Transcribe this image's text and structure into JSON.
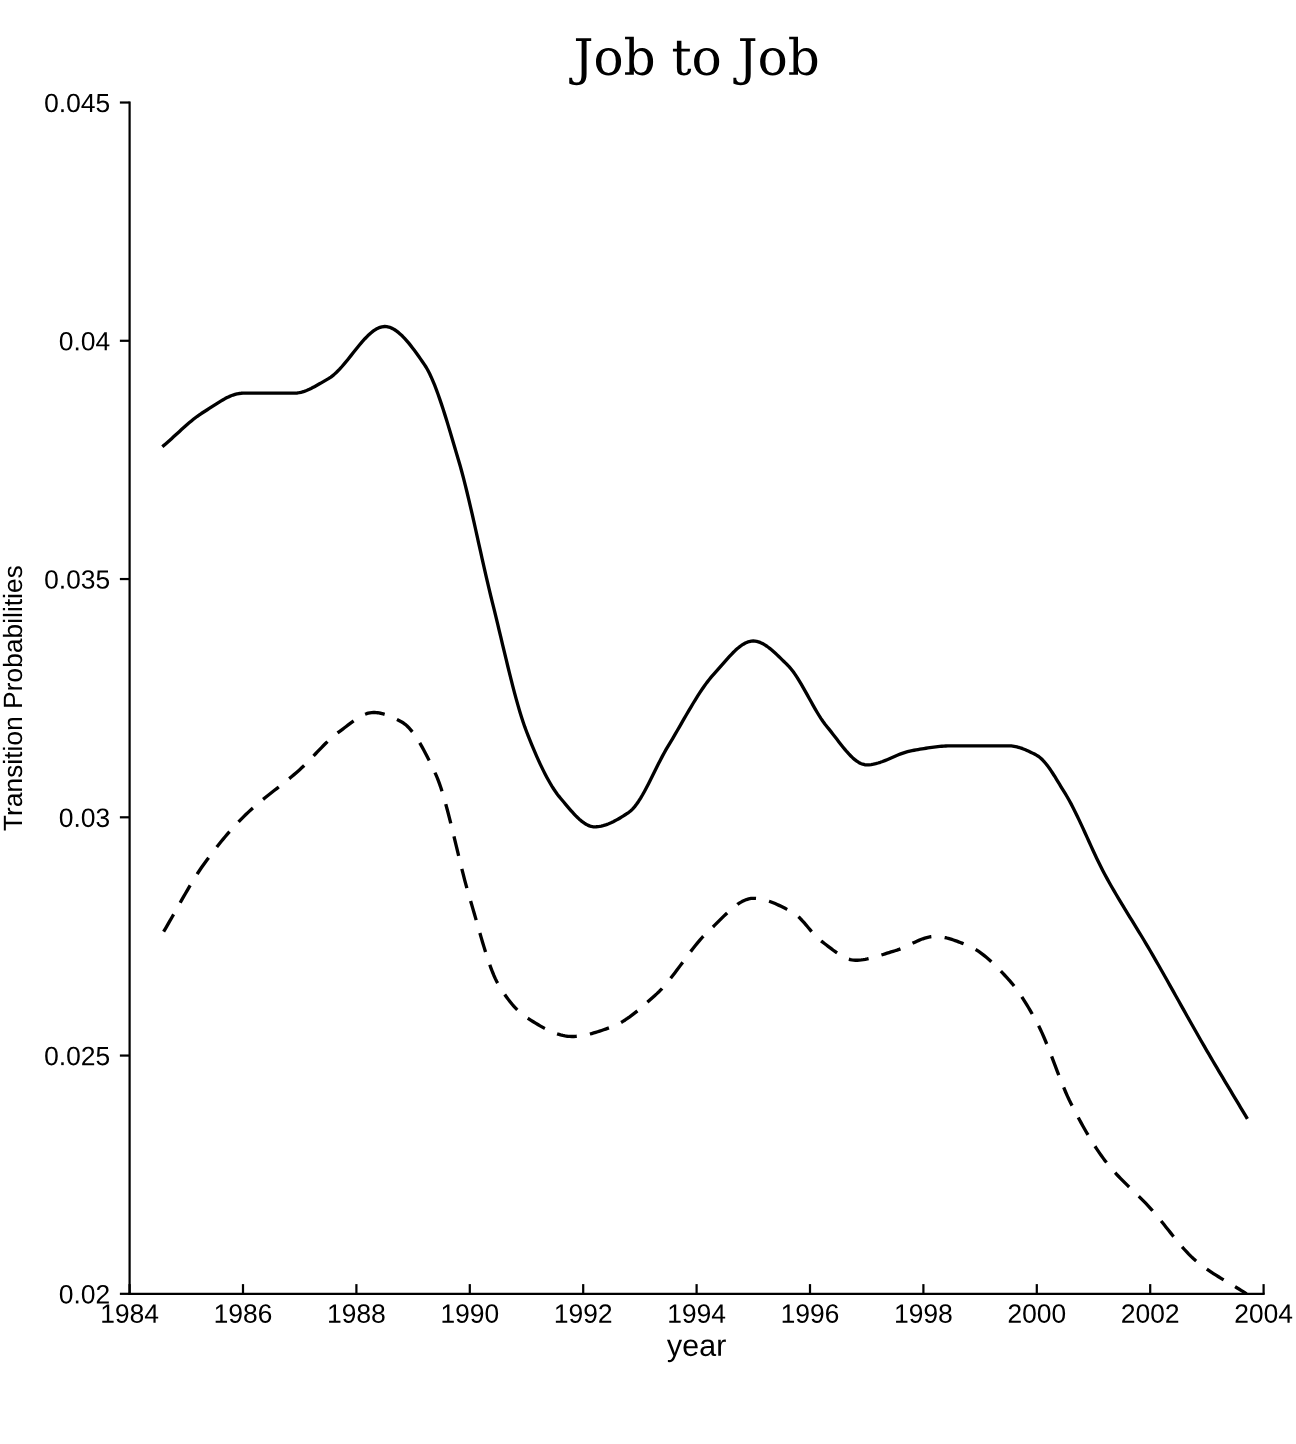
{
  "chart_data": {
    "type": "line",
    "title": "Job to Job",
    "xlabel": "year",
    "ylabel": "Transition Probabilities",
    "xlim": [
      1984,
      2004
    ],
    "ylim": [
      0.02,
      0.045
    ],
    "xticks": [
      1984,
      1986,
      1988,
      1990,
      1992,
      1994,
      1996,
      1998,
      2000,
      2002,
      2004
    ],
    "yticks": [
      0.02,
      0.025,
      0.03,
      0.035,
      0.04,
      0.045
    ],
    "grid": false,
    "legend": false,
    "marker": "none",
    "series": [
      {
        "color": "#000000",
        "line_style": "solid",
        "x": [
          1984.6,
          1985.3,
          1986,
          1986.9,
          1987.5,
          1988.5,
          1989.2,
          1989.8,
          1990.4,
          1991,
          1991.6,
          1992.2,
          1992.8,
          1993.5,
          1994.3,
          1995,
          1995.6,
          1996.3,
          1997,
          1997.8,
          1998.5,
          1999.5,
          2000,
          2000.5,
          2001.2,
          2002,
          2003,
          2003.7
        ],
        "values": [
          0.0378,
          0.0385,
          0.0389,
          0.0389,
          0.0392,
          0.0403,
          0.0395,
          0.0375,
          0.0345,
          0.0318,
          0.0304,
          0.0298,
          0.0301,
          0.0315,
          0.033,
          0.0337,
          0.0332,
          0.0319,
          0.0311,
          0.0314,
          0.0315,
          0.0315,
          0.0313,
          0.0305,
          0.0288,
          0.0272,
          0.0251,
          0.0237
        ]
      },
      {
        "color": "#000000",
        "line_style": "dashed",
        "x": [
          1984.6,
          1985.3,
          1986,
          1987,
          1987.7,
          1988.3,
          1988.8,
          1989.4,
          1990,
          1990.5,
          1991,
          1991.8,
          1992.5,
          1993.3,
          1994.2,
          1995,
          1995.7,
          1996.2,
          1996.8,
          1997.5,
          1998.2,
          1998.8,
          1999.5,
          2000,
          2000.6,
          2001.2,
          2002,
          2002.8,
          2003.7
        ],
        "values": [
          0.0276,
          0.029,
          0.03,
          0.031,
          0.0318,
          0.0322,
          0.032,
          0.0309,
          0.0283,
          0.0265,
          0.0258,
          0.0254,
          0.0256,
          0.0263,
          0.0276,
          0.0283,
          0.028,
          0.0274,
          0.027,
          0.0272,
          0.0275,
          0.0273,
          0.0266,
          0.0257,
          0.024,
          0.0228,
          0.0218,
          0.0207,
          0.02
        ]
      }
    ]
  }
}
